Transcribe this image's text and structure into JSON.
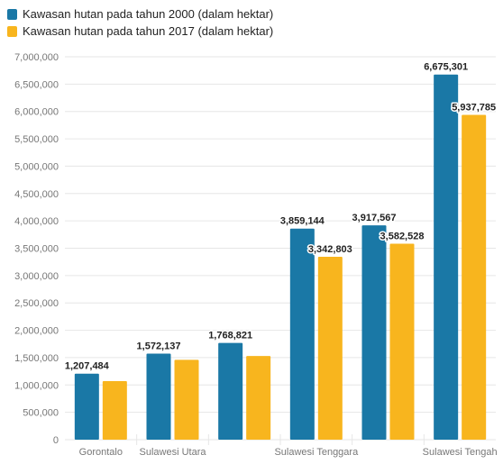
{
  "chart_data": {
    "type": "bar",
    "categories": [
      "Gorontalo",
      "Sulawesi Utara",
      "",
      "Sulawesi Tenggara",
      "",
      "Sulawesi Tengah"
    ],
    "series": [
      {
        "name": "Kawasan hutan pada tahun 2000 (dalam hektar)",
        "color": "#1a78a6",
        "values": [
          1207484,
          1572137,
          1768821,
          3859144,
          3917567,
          6675301
        ]
      },
      {
        "name": "Kawasan hutan pada tahun 2017 (dalam hektar)",
        "color": "#f8b51e",
        "values": [
          1070000,
          1460000,
          1530000,
          3342803,
          3582528,
          5937785
        ]
      }
    ],
    "data_labels": [
      {
        "series": 0,
        "index": 0,
        "text": "1,207,484"
      },
      {
        "series": 0,
        "index": 1,
        "text": "1,572,137"
      },
      {
        "series": 0,
        "index": 2,
        "text": "1,768,821"
      },
      {
        "series": 0,
        "index": 3,
        "text": "3,859,144"
      },
      {
        "series": 1,
        "index": 3,
        "text": "3,342,803"
      },
      {
        "series": 0,
        "index": 4,
        "text": "3,917,567"
      },
      {
        "series": 1,
        "index": 4,
        "text": "3,582,528"
      },
      {
        "series": 0,
        "index": 5,
        "text": "6,675,301"
      },
      {
        "series": 1,
        "index": 5,
        "text": "5,937,785"
      }
    ],
    "y_ticks": [
      "0",
      "500,000",
      "1,000,000",
      "1,500,000",
      "2,000,000",
      "2,500,000",
      "3,000,000",
      "3,500,000",
      "4,000,000",
      "4,500,000",
      "5,000,000",
      "5,500,000",
      "6,000,000",
      "6,500,000",
      "7,000,000"
    ],
    "ylim": [
      0,
      7000000
    ],
    "grid": true,
    "legend_position": "top-left",
    "title": "",
    "xlabel": "",
    "ylabel": ""
  }
}
